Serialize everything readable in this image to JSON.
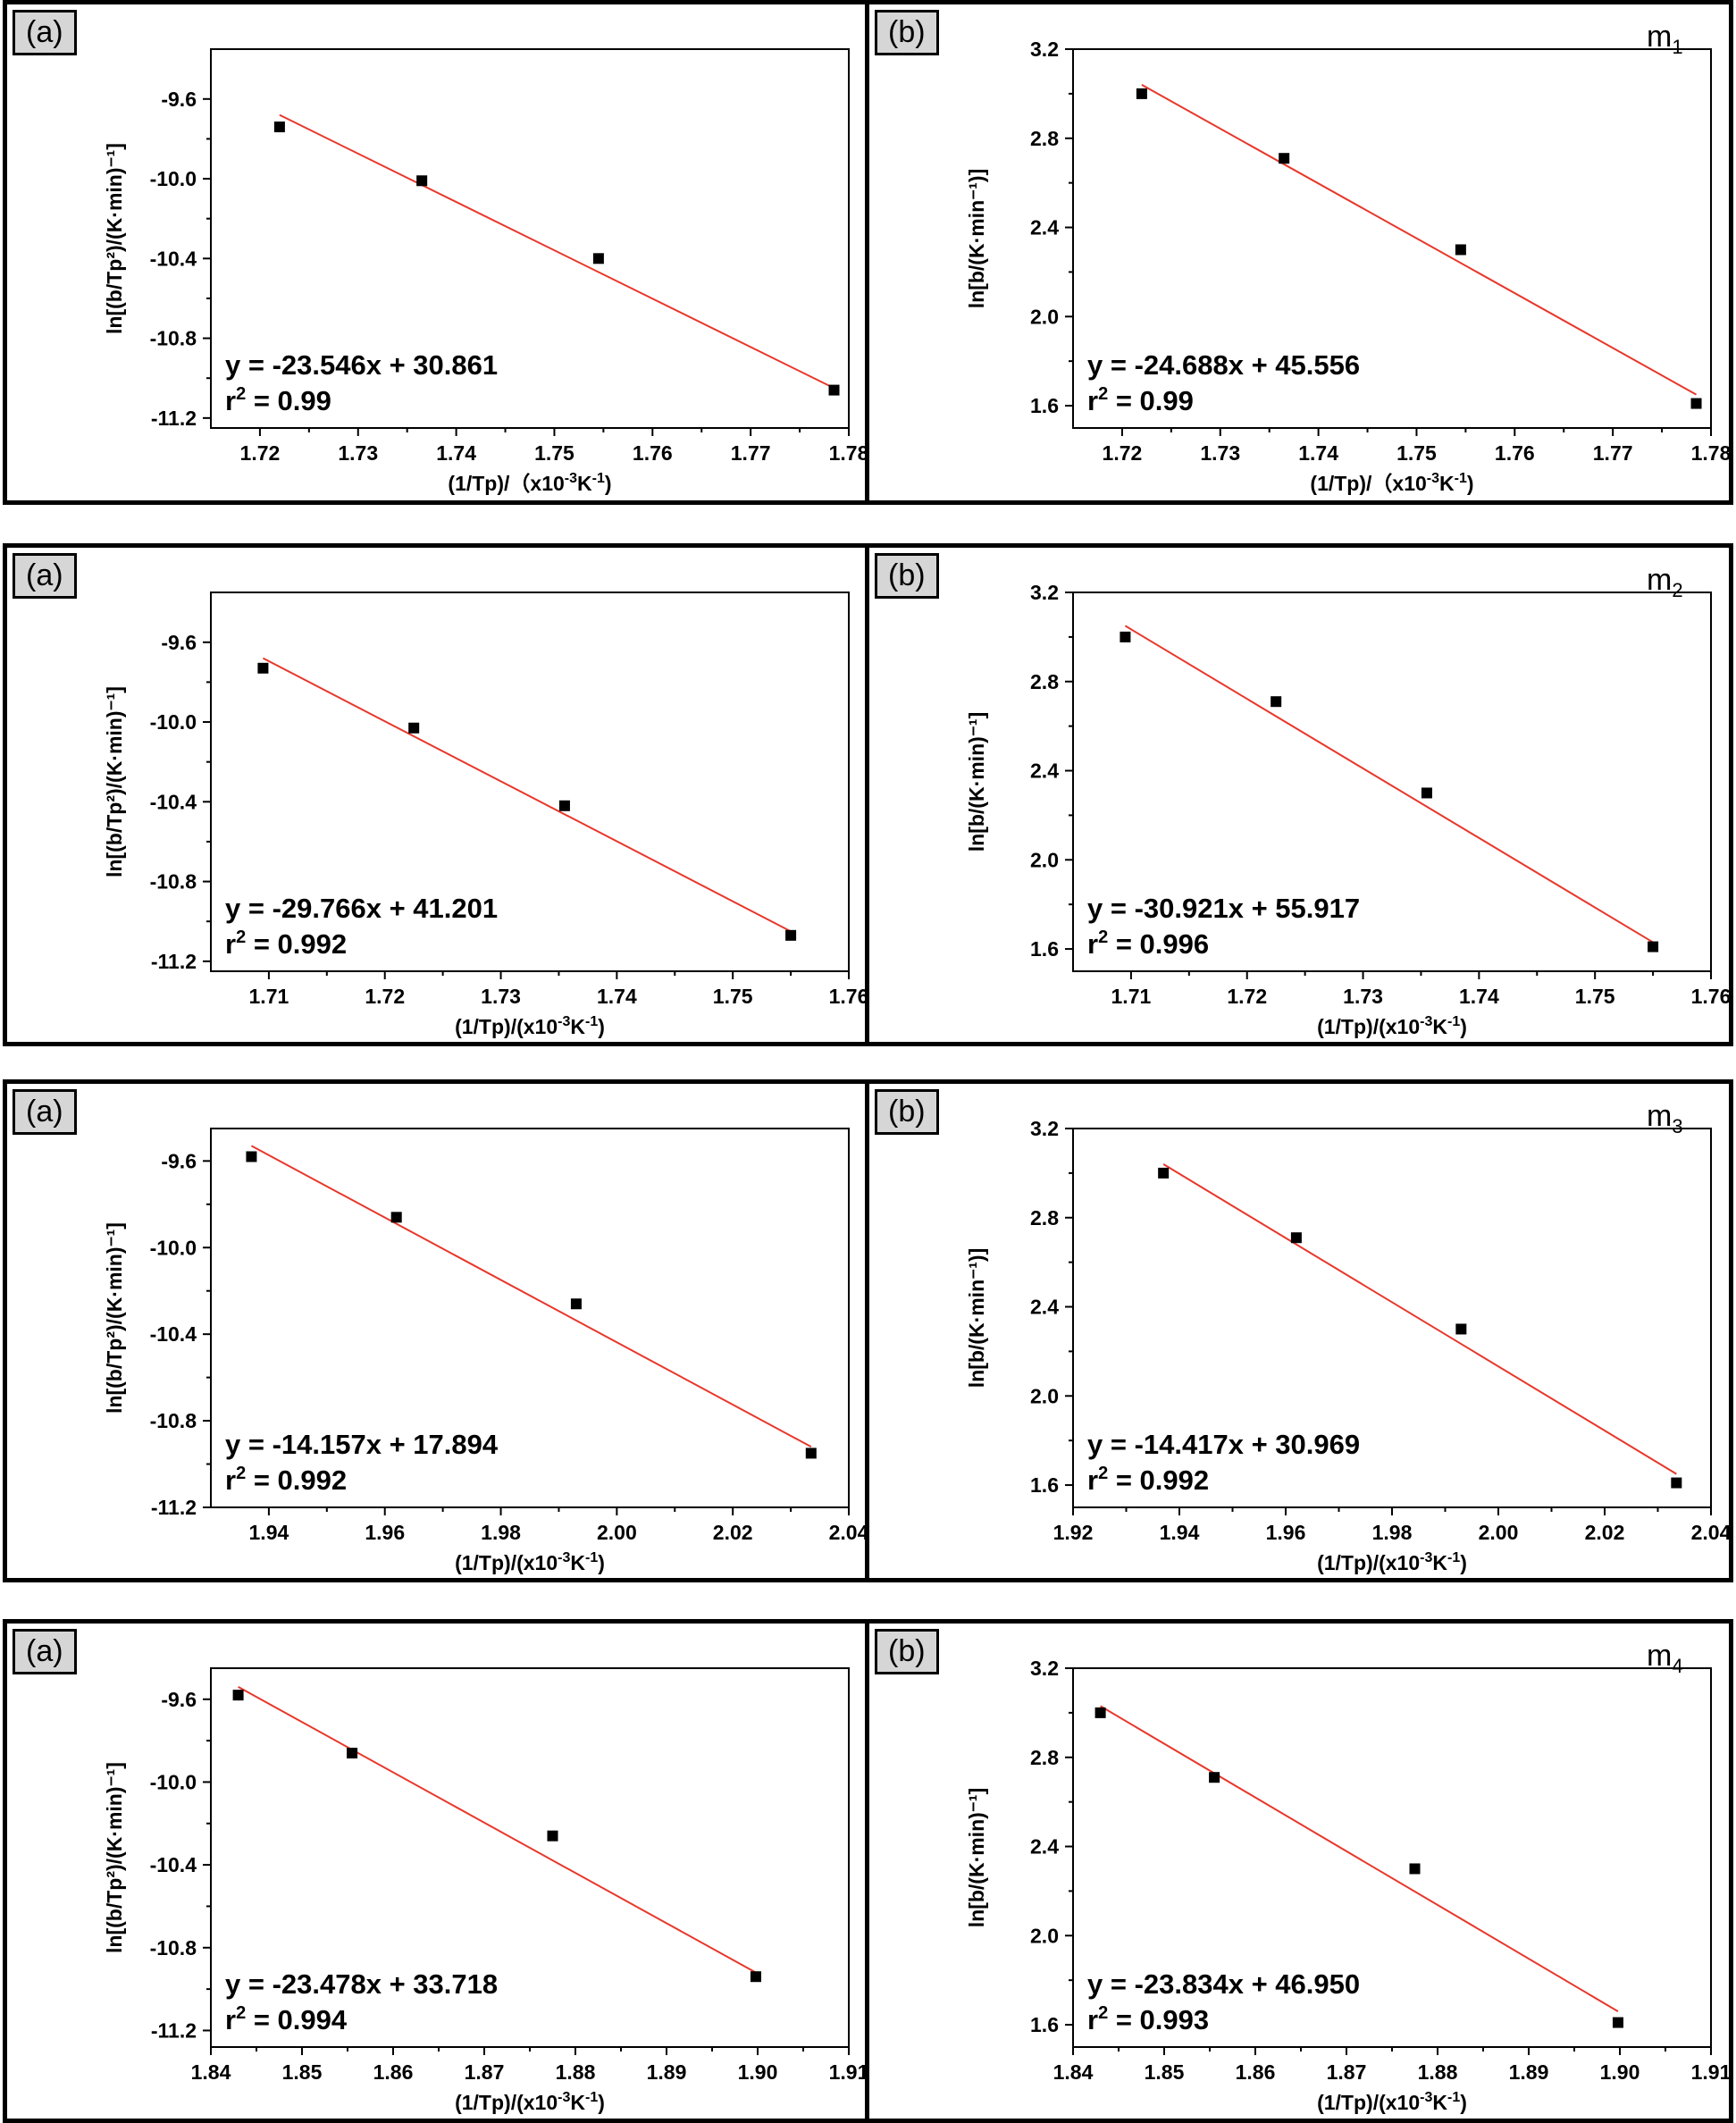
{
  "rows": [
    {
      "tag": {
        "base": "m",
        "sub": "1"
      },
      "panels": [
        {
          "label": "(a)",
          "chart_data": {
            "type": "scatter",
            "xlabel": {
              "main": "(1/Tp)/（x10",
              "sup": "-3",
              "tail": "K",
              "sup2": "-1",
              "end": ")"
            },
            "ylabel": "ln[(b/Tp²)/(K·min)⁻¹]",
            "xlim": [
              1.715,
              1.78
            ],
            "ylim": [
              -11.25,
              -9.35
            ],
            "xticks": [
              "1.72",
              "1.73",
              "1.74",
              "1.75",
              "1.76",
              "1.77",
              "1.78"
            ],
            "xtick_values": [
              1.72,
              1.73,
              1.74,
              1.75,
              1.76,
              1.77,
              1.78
            ],
            "yticks": [
              "-11.2",
              "-10.8",
              "-10.4",
              "-10.0",
              "-9.6"
            ],
            "ytick_values": [
              -11.2,
              -10.8,
              -10.4,
              -10.0,
              -9.6
            ],
            "x": [
              1.722,
              1.7365,
              1.7545,
              1.7785
            ],
            "y": [
              -9.74,
              -10.01,
              -10.4,
              -11.06
            ],
            "fit": {
              "x": [
                1.722,
                1.7785
              ],
              "y": [
                -9.68,
                -11.05
              ]
            },
            "equation": "y = -23.546x + 30.861",
            "r2": {
              "base": "r",
              "sup": "2",
              "rest": " = 0.99"
            },
            "marker_color": "#000000",
            "line_color": "#e8372b"
          }
        },
        {
          "label": "(b)",
          "chart_data": {
            "type": "scatter",
            "xlabel": {
              "main": "(1/Tp)/（x10",
              "sup": "-3",
              "tail": "K",
              "sup2": "-1",
              "end": ")"
            },
            "ylabel": "ln[b/(K·min⁻¹)]",
            "xlim": [
              1.715,
              1.78
            ],
            "ylim": [
              1.5,
              3.2
            ],
            "xticks": [
              "1.72",
              "1.73",
              "1.74",
              "1.75",
              "1.76",
              "1.77",
              "1.78"
            ],
            "xtick_values": [
              1.72,
              1.73,
              1.74,
              1.75,
              1.76,
              1.77,
              1.78
            ],
            "yticks": [
              "1.6",
              "2.0",
              "2.4",
              "2.8",
              "3.2"
            ],
            "ytick_values": [
              1.6,
              2.0,
              2.4,
              2.8,
              3.2
            ],
            "x": [
              1.722,
              1.7365,
              1.7545,
              1.7785
            ],
            "y": [
              3.0,
              2.71,
              2.3,
              1.61
            ],
            "fit": {
              "x": [
                1.722,
                1.7785
              ],
              "y": [
                3.04,
                1.65
              ]
            },
            "equation": "y = -24.688x + 45.556",
            "r2": {
              "base": "r",
              "sup": "2",
              "rest": " = 0.99"
            },
            "marker_color": "#000000",
            "line_color": "#e8372b"
          }
        }
      ]
    },
    {
      "tag": {
        "base": "m",
        "sub": "2"
      },
      "panels": [
        {
          "label": "(a)",
          "chart_data": {
            "type": "scatter",
            "xlabel": {
              "main": "(1/Tp)/(x10",
              "sup": "-3",
              "tail": "K",
              "sup2": "-1",
              "end": ")"
            },
            "ylabel": "ln[(b/Tp²)/(K·min)⁻¹]",
            "xlim": [
              1.705,
              1.76
            ],
            "ylim": [
              -11.25,
              -9.35
            ],
            "xticks": [
              "1.71",
              "1.72",
              "1.73",
              "1.74",
              "1.75",
              "1.76"
            ],
            "xtick_values": [
              1.71,
              1.72,
              1.73,
              1.74,
              1.75,
              1.76
            ],
            "yticks": [
              "-11.2",
              "-10.8",
              "-10.4",
              "-10.0",
              "-9.6"
            ],
            "ytick_values": [
              -11.2,
              -10.8,
              -10.4,
              -10.0,
              -9.6
            ],
            "x": [
              1.7095,
              1.7225,
              1.7355,
              1.755
            ],
            "y": [
              -9.73,
              -10.03,
              -10.42,
              -11.07
            ],
            "fit": {
              "x": [
                1.7095,
                1.755
              ],
              "y": [
                -9.68,
                -11.05
              ]
            },
            "equation": "y = -29.766x + 41.201",
            "r2": {
              "base": "r",
              "sup": "2",
              "rest": " = 0.992"
            },
            "marker_color": "#000000",
            "line_color": "#e8372b"
          }
        },
        {
          "label": "(b)",
          "chart_data": {
            "type": "scatter",
            "xlabel": {
              "main": "(1/Tp)/(x10",
              "sup": "-3",
              "tail": "K",
              "sup2": "-1",
              "end": ")"
            },
            "ylabel": "ln[b/(K·min)⁻¹]",
            "xlim": [
              1.705,
              1.76
            ],
            "ylim": [
              1.5,
              3.2
            ],
            "xticks": [
              "1.71",
              "1.72",
              "1.73",
              "1.74",
              "1.75",
              "1.76"
            ],
            "xtick_values": [
              1.71,
              1.72,
              1.73,
              1.74,
              1.75,
              1.76
            ],
            "yticks": [
              "1.6",
              "2.0",
              "2.4",
              "2.8",
              "3.2"
            ],
            "ytick_values": [
              1.6,
              2.0,
              2.4,
              2.8,
              3.2
            ],
            "x": [
              1.7095,
              1.7225,
              1.7355,
              1.755
            ],
            "y": [
              3.0,
              2.71,
              2.3,
              1.61
            ],
            "fit": {
              "x": [
                1.7095,
                1.755
              ],
              "y": [
                3.05,
                1.63
              ]
            },
            "equation": "y = -30.921x + 55.917",
            "r2": {
              "base": "r",
              "sup": "2",
              "rest": " = 0.996"
            },
            "marker_color": "#000000",
            "line_color": "#e8372b"
          }
        }
      ]
    },
    {
      "tag": {
        "base": "m",
        "sub": "3"
      },
      "panels": [
        {
          "label": "(a)",
          "chart_data": {
            "type": "scatter",
            "xlabel": {
              "main": "(1/Tp)/(x10",
              "sup": "-3",
              "tail": "K",
              "sup2": "-1",
              "end": ")"
            },
            "ylabel": "ln[(b/Tp²)/(K·min)⁻¹]",
            "xlim": [
              1.93,
              2.04
            ],
            "ylim": [
              -11.2,
              -9.45
            ],
            "xticks": [
              "1.94",
              "1.96",
              "1.98",
              "2.00",
              "2.02",
              "2.04"
            ],
            "xtick_values": [
              1.94,
              1.96,
              1.98,
              2.0,
              2.02,
              2.04
            ],
            "yticks": [
              "-11.2",
              "-10.8",
              "-10.4",
              "-10.0",
              "-9.6"
            ],
            "ytick_values": [
              -11.2,
              -10.8,
              -10.4,
              -10.0,
              -9.6
            ],
            "x": [
              1.937,
              1.962,
              1.993,
              2.0335
            ],
            "y": [
              -9.58,
              -9.86,
              -10.26,
              -10.95
            ],
            "fit": {
              "x": [
                1.937,
                2.0335
              ],
              "y": [
                -9.53,
                -10.92
              ]
            },
            "equation": "y = -14.157x + 17.894",
            "r2": {
              "base": "r",
              "sup": "2",
              "rest": " = 0.992"
            },
            "marker_color": "#000000",
            "line_color": "#e8372b"
          }
        },
        {
          "label": "(b)",
          "chart_data": {
            "type": "scatter",
            "xlabel": {
              "main": "(1/Tp)/(x10",
              "sup": "-3",
              "tail": "K",
              "sup2": "-1",
              "end": ")"
            },
            "ylabel": "ln[b/(K·min⁻¹)]",
            "xlim": [
              1.92,
              2.04
            ],
            "ylim": [
              1.5,
              3.2
            ],
            "xticks": [
              "1.92",
              "1.94",
              "1.96",
              "1.98",
              "2.00",
              "2.02",
              "2.04"
            ],
            "xtick_values": [
              1.92,
              1.94,
              1.96,
              1.98,
              2.0,
              2.02,
              2.04
            ],
            "yticks": [
              "1.6",
              "2.0",
              "2.4",
              "2.8",
              "3.2"
            ],
            "ytick_values": [
              1.6,
              2.0,
              2.4,
              2.8,
              3.2
            ],
            "x": [
              1.937,
              1.962,
              1.993,
              2.0335
            ],
            "y": [
              3.0,
              2.71,
              2.3,
              1.61
            ],
            "fit": {
              "x": [
                1.937,
                2.0335
              ],
              "y": [
                3.04,
                1.65
              ]
            },
            "equation": "y = -14.417x + 30.969",
            "r2": {
              "base": "r",
              "sup": "2",
              "rest": " = 0.992"
            },
            "marker_color": "#000000",
            "line_color": "#e8372b"
          }
        }
      ]
    },
    {
      "tag": {
        "base": "m",
        "sub": "4"
      },
      "panels": [
        {
          "label": "(a)",
          "chart_data": {
            "type": "scatter",
            "xlabel": {
              "main": "(1/Tp)/(x10",
              "sup": "-3",
              "tail": "K",
              "sup2": "-1",
              "end": ")"
            },
            "ylabel": "ln[(b/Tp²)/(K·min)⁻¹]",
            "xlim": [
              1.84,
              1.91
            ],
            "ylim": [
              -11.28,
              -9.45
            ],
            "xticks": [
              "1.84",
              "1.85",
              "1.86",
              "1.87",
              "1.88",
              "1.89",
              "1.90",
              "1.91"
            ],
            "xtick_values": [
              1.84,
              1.85,
              1.86,
              1.87,
              1.88,
              1.89,
              1.9,
              1.91
            ],
            "yticks": [
              "-11.2",
              "-10.8",
              "-10.4",
              "-10.0",
              "-9.6"
            ],
            "ytick_values": [
              -11.2,
              -10.8,
              -10.4,
              -10.0,
              -9.6
            ],
            "x": [
              1.843,
              1.8555,
              1.8775,
              1.8998
            ],
            "y": [
              -9.58,
              -9.86,
              -10.26,
              -10.94
            ],
            "fit": {
              "x": [
                1.843,
                1.8998
              ],
              "y": [
                -9.54,
                -10.92
              ]
            },
            "equation": "y = -23.478x + 33.718",
            "r2": {
              "base": "r",
              "sup": "2",
              "rest": " = 0.994"
            },
            "marker_color": "#000000",
            "line_color": "#e8372b"
          }
        },
        {
          "label": "(b)",
          "chart_data": {
            "type": "scatter",
            "xlabel": {
              "main": "(1/Tp)/(x10",
              "sup": "-3",
              "tail": "K",
              "sup2": "-1",
              "end": ")"
            },
            "ylabel": "ln[b/(K·min)⁻¹]",
            "xlim": [
              1.84,
              1.91
            ],
            "ylim": [
              1.5,
              3.2
            ],
            "xticks": [
              "1.84",
              "1.85",
              "1.86",
              "1.87",
              "1.88",
              "1.89",
              "1.90",
              "1.91"
            ],
            "xtick_values": [
              1.84,
              1.85,
              1.86,
              1.87,
              1.88,
              1.89,
              1.9,
              1.91
            ],
            "yticks": [
              "1.6",
              "2.0",
              "2.4",
              "2.8",
              "3.2"
            ],
            "ytick_values": [
              1.6,
              2.0,
              2.4,
              2.8,
              3.2
            ],
            "x": [
              1.843,
              1.8555,
              1.8775,
              1.8998
            ],
            "y": [
              3.0,
              2.71,
              2.3,
              1.61
            ],
            "fit": {
              "x": [
                1.843,
                1.8998
              ],
              "y": [
                3.03,
                1.66
              ]
            },
            "equation": "y = -23.834x + 46.950",
            "r2": {
              "base": "r",
              "sup": "2",
              "rest": " = 0.993"
            },
            "marker_color": "#000000",
            "line_color": "#e8372b"
          }
        }
      ]
    }
  ]
}
